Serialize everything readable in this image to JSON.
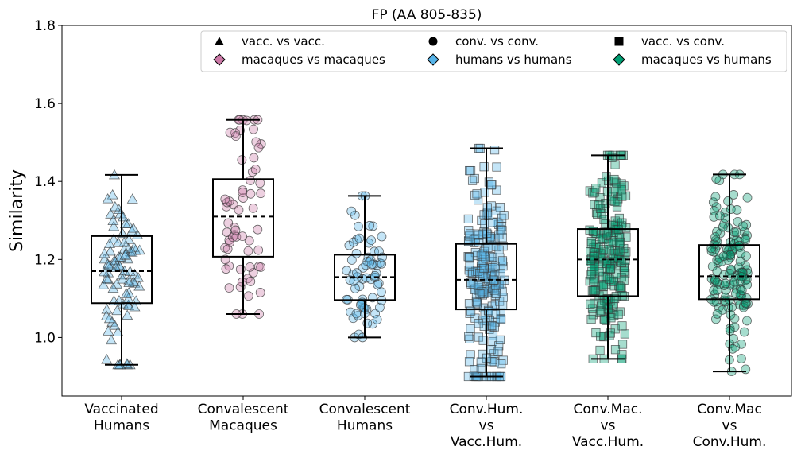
{
  "chart_data": {
    "type": "box-strip",
    "title": "FP (AA 805-835)",
    "ylabel": "Similarity",
    "xlabel": "",
    "ylim": [
      0.85,
      1.8
    ],
    "yticks": [
      "1.0",
      "1.2",
      "1.4",
      "1.6",
      "1.8"
    ],
    "ytick_values": [
      1.0,
      1.2,
      1.4,
      1.6,
      1.8
    ],
    "legend_position": "top-right",
    "legend": [
      {
        "label": "vacc. vs vacc.",
        "marker": "triangle",
        "color": "#000000"
      },
      {
        "label": "conv. vs conv.",
        "marker": "circle",
        "color": "#000000"
      },
      {
        "label": "vacc. vs conv.",
        "marker": "square",
        "color": "#000000"
      },
      {
        "label": "macaques vs macaques",
        "marker": "diamond",
        "color": "#cc79a7"
      },
      {
        "label": "humans vs humans",
        "marker": "diamond",
        "color": "#56b4e9"
      },
      {
        "label": "macaques vs humans",
        "marker": "diamond",
        "color": "#009e73"
      }
    ],
    "groups": [
      {
        "label_lines": [
          "Vaccinated",
          "Humans"
        ],
        "marker": "triangle",
        "color": "#56b4e9",
        "whisker_low": 0.93,
        "q1": 1.088,
        "median": 1.17,
        "q3": 1.26,
        "whisker_high": 1.417,
        "n_points": 90
      },
      {
        "label_lines": [
          "Convalescent",
          "Macaques"
        ],
        "marker": "circle",
        "color": "#cc79a7",
        "whisker_low": 1.06,
        "q1": 1.207,
        "median": 1.31,
        "q3": 1.406,
        "whisker_high": 1.558,
        "n_points": 66
      },
      {
        "label_lines": [
          "Convalescent",
          "Humans"
        ],
        "marker": "circle",
        "color": "#56b4e9",
        "whisker_low": 1.0,
        "q1": 1.096,
        "median": 1.155,
        "q3": 1.212,
        "whisker_high": 1.363,
        "n_points": 72
      },
      {
        "label_lines": [
          "Conv.Hum.",
          "vs",
          "Vacc.Hum."
        ],
        "marker": "square",
        "color": "#56b4e9",
        "whisker_low": 0.9,
        "q1": 1.072,
        "median": 1.148,
        "q3": 1.24,
        "whisker_high": 1.485,
        "n_points": 220
      },
      {
        "label_lines": [
          "Conv.Mac.",
          "vs",
          "Vacc.Hum."
        ],
        "marker": "square",
        "color": "#009e73",
        "whisker_low": 0.945,
        "q1": 1.106,
        "median": 1.2,
        "q3": 1.278,
        "whisker_high": 1.467,
        "n_points": 220
      },
      {
        "label_lines": [
          "Conv.Mac",
          "vs",
          "Conv.Hum."
        ],
        "marker": "circle",
        "color": "#009e73",
        "whisker_low": 0.913,
        "q1": 1.098,
        "median": 1.157,
        "q3": 1.237,
        "whisker_high": 1.418,
        "n_points": 150
      }
    ]
  }
}
